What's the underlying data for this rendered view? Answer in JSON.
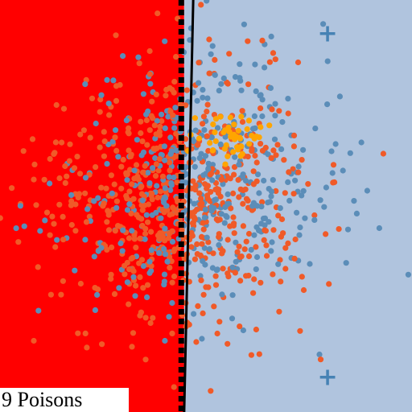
{
  "chart_data": {
    "type": "scatter",
    "title": "",
    "xlabel": "",
    "ylabel": "",
    "xlim": [
      0,
      100
    ],
    "ylim": [
      0,
      100
    ],
    "grid": false,
    "annotation": "9 Poisons",
    "regions": [
      {
        "name": "red-region",
        "color": "#ff0000",
        "x_range": [
          0,
          44.7
        ]
      },
      {
        "name": "blue-region",
        "color": "#b0c4de",
        "x_range": [
          44.7,
          100
        ]
      }
    ],
    "boundaries": [
      {
        "name": "clean-boundary",
        "style": "dashed",
        "color": "#000000",
        "x_top": 44.0,
        "x_bottom": 44.0
      },
      {
        "name": "poisoned-boundary",
        "style": "solid",
        "color": "#000000",
        "x_top": 46.9,
        "x_bottom": 44.7
      }
    ],
    "series": [
      {
        "name": "class-orange",
        "color": "#f05a28",
        "generate": {
          "n": 620,
          "mean": [
            43,
            52
          ],
          "sd": [
            15,
            15
          ],
          "seed": 11
        }
      },
      {
        "name": "class-blue",
        "color": "#5b8db8",
        "generate": {
          "n": 430,
          "mean": [
            48,
            56
          ],
          "sd": [
            15,
            14
          ],
          "seed": 23
        }
      },
      {
        "name": "target-gold",
        "color": "#ffa500",
        "generate": {
          "n": 45,
          "mean": [
            56,
            67
          ],
          "sd": [
            5,
            3.5
          ],
          "seed": 37
        }
      }
    ],
    "markers": [
      {
        "name": "poison-marker",
        "symbol": "+",
        "color": "#4682b4",
        "x": 79.5,
        "y": 91.8
      },
      {
        "name": "poison-marker",
        "symbol": "+",
        "color": "#4682b4",
        "x": 79.5,
        "y": 8.4
      }
    ]
  }
}
